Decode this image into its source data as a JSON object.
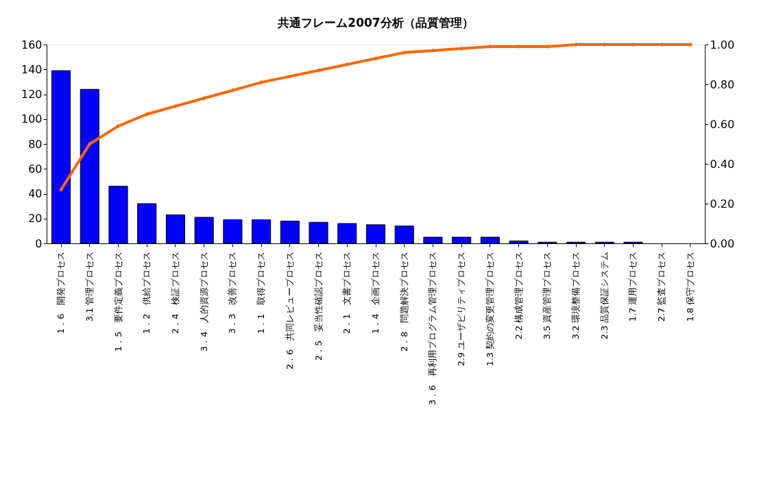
{
  "chart_data": {
    "type": "bar",
    "title": "共通フレーム2007分析（品質管理）",
    "categories": [
      "1．6　開発プロセス",
      "3.1 管理プロセス",
      "1．5　要件定義プロセス",
      "1．2　供給プロセス",
      "2．4　検証プロセス",
      "3．4　人的資源プロセス",
      "3．3　改善プロセス",
      "1．1　取得プロセス",
      "2．6　共同レビュープロセス",
      "2．5　妥当性確認プロセス",
      "2．1　文書プロセス",
      "1．4　企画プロセス",
      "2．8　問題解決プロセス",
      "3．6　再利用プログラム管理プロセス",
      "2.9 ユーザビリティプロセス",
      "1.3 契約の変更管理プロセス",
      "2.2 構成管理プロセス",
      "3.5 資産管理プロセス",
      "3.2 環境整備プロセス",
      "2.3 品質保証システム",
      "1.7 運用プロセス",
      "2.7 監査プロセス",
      "1.8 保守プロセス"
    ],
    "series": [
      {
        "color": "#0000ff",
        "values": [
          139,
          124,
          46,
          32,
          23,
          21,
          19,
          19,
          18,
          17,
          16,
          15,
          14,
          5,
          5,
          5,
          2,
          1,
          1,
          1,
          1,
          0,
          0
        ]
      },
      {
        "type": "line",
        "axis": "y2",
        "color": "#ff6600",
        "marker": "diamond",
        "values": [
          0.27,
          0.5,
          0.59,
          0.65,
          0.69,
          0.73,
          0.77,
          0.81,
          0.84,
          0.87,
          0.9,
          0.93,
          0.96,
          0.97,
          0.98,
          0.99,
          0.99,
          0.99,
          1.0,
          1.0,
          1.0,
          1.0,
          1.0
        ]
      }
    ],
    "ylim": [
      0,
      160
    ],
    "yticks": [
      0,
      20,
      40,
      60,
      80,
      100,
      120,
      140,
      160
    ],
    "y2lim": [
      0,
      1
    ],
    "y2ticks": [
      {
        "value": 0,
        "label": "0.00"
      },
      {
        "value": 0.2,
        "label": "0.20"
      },
      {
        "value": 0.4,
        "label": "0.40"
      },
      {
        "value": 0.6,
        "label": "0.60"
      },
      {
        "value": 0.8,
        "label": "0.80"
      },
      {
        "value": 1,
        "label": "1.00"
      }
    ],
    "grid": false
  }
}
